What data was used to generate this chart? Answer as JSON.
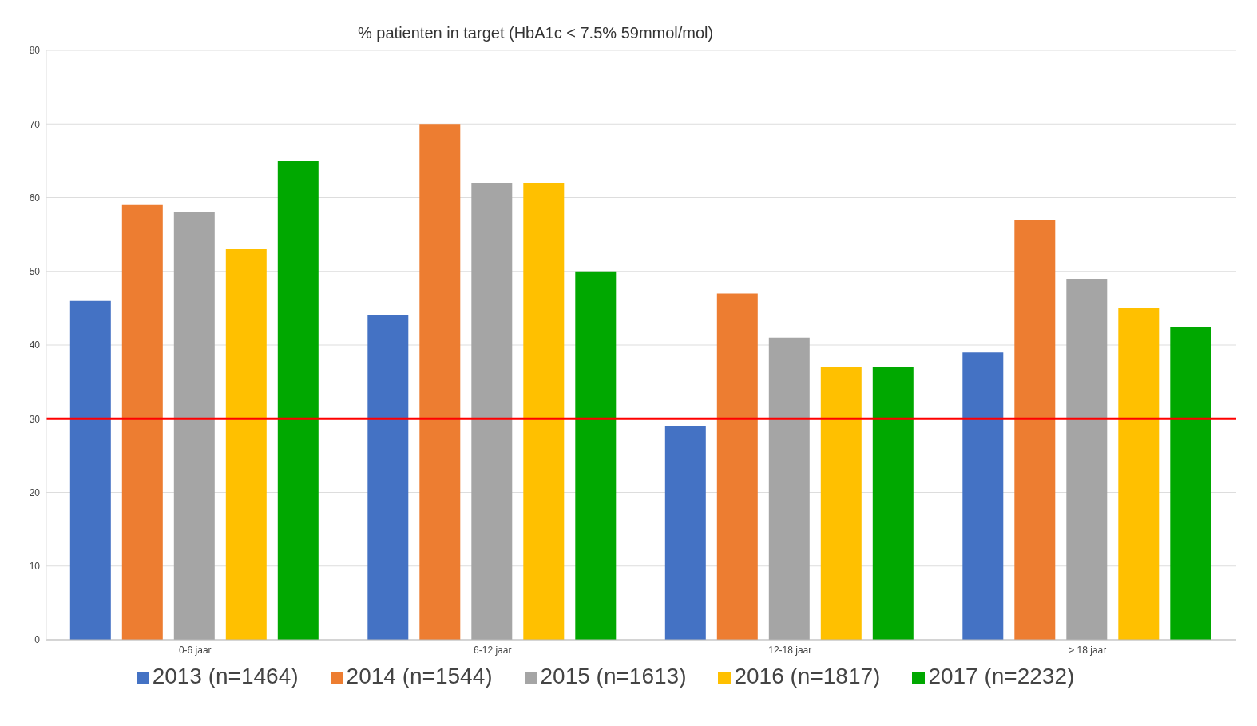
{
  "chart_data": {
    "type": "bar",
    "title": "% patienten in target  (HbA1c < 7.5%  59mmol/mol)",
    "categories": [
      "0-6 jaar",
      "6-12 jaar",
      "12-18 jaar",
      "> 18 jaar"
    ],
    "series": [
      {
        "name": "2013 (n=1464)",
        "color": "#4472c4",
        "values": [
          46,
          44,
          29,
          39
        ]
      },
      {
        "name": "2014  (n=1544)",
        "color": "#ed7d31",
        "values": [
          59,
          70,
          47,
          57
        ]
      },
      {
        "name": "2015  (n=1613)",
        "color": "#a5a5a5",
        "values": [
          58,
          62,
          41,
          49
        ]
      },
      {
        "name": "2016  (n=1817)",
        "color": "#ffc000",
        "values": [
          53,
          62,
          37,
          45
        ]
      },
      {
        "name": "2017 (n=2232)",
        "color": "#00a800",
        "values": [
          65,
          50,
          37,
          42.5
        ]
      }
    ],
    "ylim": [
      0,
      80
    ],
    "yticks": [
      0,
      10,
      20,
      30,
      40,
      50,
      60,
      70,
      80
    ],
    "grid": "y",
    "legend": "bottom",
    "ref_lines": [
      {
        "axis": "y",
        "value": 30,
        "color": "#ff0000"
      }
    ]
  }
}
